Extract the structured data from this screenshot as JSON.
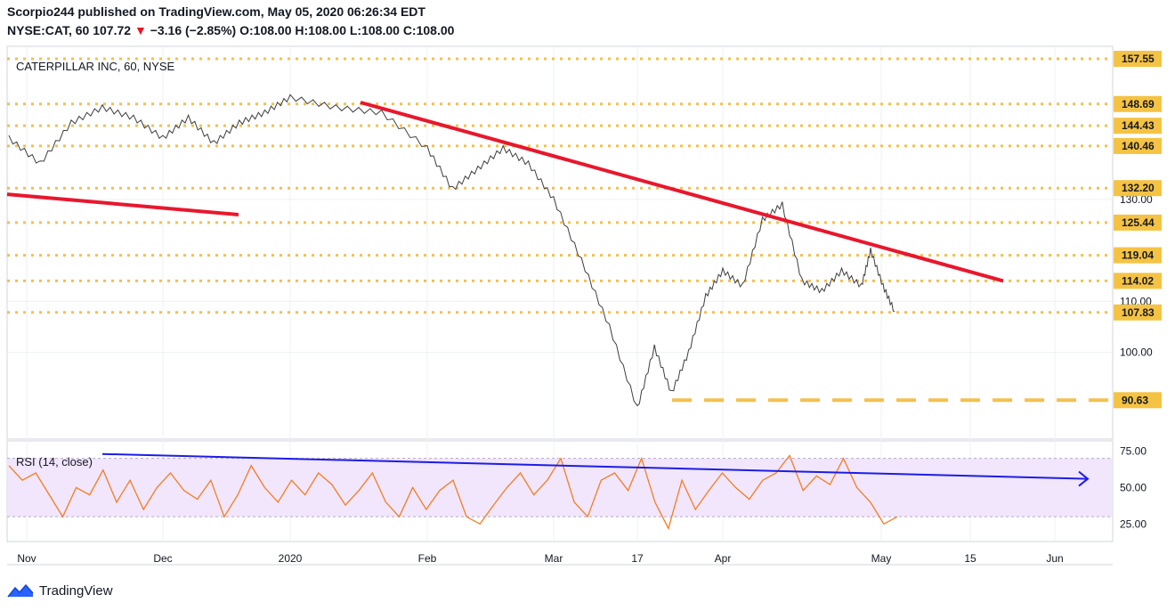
{
  "header": {
    "publisher_line": "Scorpio244 published on TradingView.com, May 05, 2020 06:26:34 EDT",
    "symbol": "NYSE:CAT, 60",
    "last": "107.72",
    "down_arrow": "▼",
    "change": "−3.16 (−2.85%)",
    "o_label": "O:",
    "o_value": "108.00",
    "h_label": "H:",
    "h_value": "108.00",
    "l_label": "L:",
    "l_value": "108.00",
    "c_label": "C:",
    "c_value": "108.00"
  },
  "footer": {
    "brand": "TradingView"
  },
  "chart_data": {
    "type": "line",
    "title": "CATERPILLAR INC, 60, NYSE",
    "x_ticks": [
      "Nov",
      "Dec",
      "2020",
      "Feb",
      "Mar",
      "17",
      "Apr",
      "May",
      "15",
      "Jun"
    ],
    "price_axis": {
      "ticks": [
        130.0,
        110.0,
        100.0
      ],
      "range": [
        83,
        160
      ]
    },
    "price_series": [
      [
        "Nov",
        142
      ],
      [
        "Nov",
        137
      ],
      [
        "Nov",
        145
      ],
      [
        "Nov",
        148
      ],
      [
        "Nov",
        146
      ],
      [
        "Dec",
        142
      ],
      [
        "Dec",
        146
      ],
      [
        "Dec",
        141
      ],
      [
        "Dec",
        145
      ],
      [
        "Dec",
        147
      ],
      [
        "2020",
        150
      ],
      [
        "2020",
        148
      ],
      [
        "2020",
        147
      ],
      [
        "Feb",
        140
      ],
      [
        "Feb",
        132
      ],
      [
        "Feb",
        136
      ],
      [
        "Feb",
        140
      ],
      [
        "Feb",
        137
      ],
      [
        "Mar",
        130
      ],
      [
        "Mar",
        118
      ],
      [
        "Mar",
        105
      ],
      [
        "17",
        89
      ],
      [
        "17",
        101
      ],
      [
        "17",
        92
      ],
      [
        "17",
        100
      ],
      [
        "17",
        111
      ],
      [
        "Apr",
        116
      ],
      [
        "Apr",
        113
      ],
      [
        "Apr",
        126
      ],
      [
        "Apr",
        129
      ],
      [
        "Apr",
        114
      ],
      [
        "Apr",
        112
      ],
      [
        "Apr",
        116
      ],
      [
        "Apr",
        113
      ],
      [
        "May",
        120
      ],
      [
        "May",
        113
      ],
      [
        "May",
        108
      ]
    ],
    "levels": [
      {
        "label": "157.55",
        "value": 157.55
      },
      {
        "label": "148.69",
        "value": 148.69
      },
      {
        "label": "144.43",
        "value": 144.43
      },
      {
        "label": "140.46",
        "value": 140.46
      },
      {
        "label": "132.20",
        "value": 132.2
      },
      {
        "label": "125.44",
        "value": 125.44
      },
      {
        "label": "119.04",
        "value": 119.04
      },
      {
        "label": "114.02",
        "value": 114.02
      },
      {
        "label": "107.83",
        "value": 107.83
      },
      {
        "label": "90.63",
        "value": 90.63,
        "style": "dashed"
      }
    ],
    "trendlines": [
      {
        "from": [
          "Nov",
          131
        ],
        "to": [
          "Dec",
          127
        ]
      },
      {
        "from": [
          "2020",
          149
        ],
        "to": [
          "May",
          114
        ]
      }
    ],
    "rsi": {
      "label": "RSI (14, close)",
      "ticks": [
        75.0,
        50.0,
        25.0
      ],
      "range": [
        13,
        82
      ],
      "band": [
        30,
        70
      ],
      "values": [
        65,
        55,
        60,
        45,
        30,
        50,
        45,
        62,
        40,
        55,
        35,
        50,
        60,
        48,
        42,
        55,
        30,
        45,
        65,
        50,
        40,
        55,
        45,
        60,
        52,
        38,
        48,
        60,
        40,
        30,
        50,
        35,
        48,
        55,
        30,
        25,
        38,
        50,
        60,
        45,
        55,
        70,
        40,
        30,
        55,
        60,
        48,
        70,
        40,
        22,
        55,
        35,
        48,
        60,
        50,
        42,
        55,
        60,
        72,
        48,
        58,
        52,
        70,
        50,
        40,
        25,
        30
      ],
      "trend": {
        "from": 73,
        "to": 56
      }
    },
    "colors": {
      "price": "#3d3d3d",
      "level": "#f2c14e",
      "trendline": "#e8172d",
      "rsi": "#f57c20",
      "rsi_band": "#f1e6fb",
      "rsi_trend": "#1d1de6",
      "tag_bg": "#f5c343"
    }
  }
}
